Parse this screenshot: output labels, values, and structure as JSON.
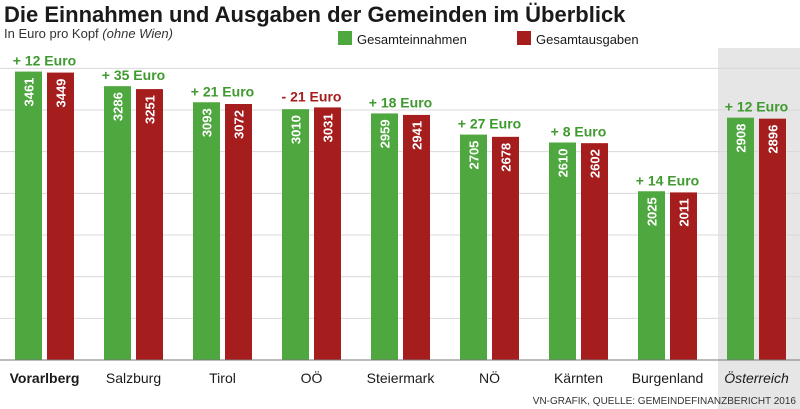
{
  "chart_data": {
    "type": "bar",
    "title": "Die Einnahmen und Ausgaben der Gemeinden im Überblick",
    "subtitle_prefix": "In Euro pro Kopf",
    "subtitle_note": "(ohne Wien)",
    "categories": [
      "Vorarlberg",
      "Salzburg",
      "Tirol",
      "OÖ",
      "Steiermark",
      "NÖ",
      "Kärnten",
      "Burgenland",
      "Österreich"
    ],
    "series": [
      {
        "name": "Gesamteinnahmen",
        "color": "#4ea83f",
        "values": [
          3461,
          3286,
          3093,
          3010,
          2959,
          2705,
          2610,
          2025,
          2908
        ]
      },
      {
        "name": "Gesamtausgaben",
        "color": "#a51d1d",
        "values": [
          3449,
          3251,
          3072,
          3031,
          2941,
          2678,
          2602,
          2011,
          2896
        ]
      }
    ],
    "differences": [
      "+ 12 Euro",
      "+ 35 Euro",
      "+ 21 Euro",
      "- 21 Euro",
      "+ 18 Euro",
      "+ 27 Euro",
      "+ 8 Euro",
      "+ 14 Euro",
      "+ 12 Euro"
    ],
    "difference_colors": {
      "positive": "#3f9a2f",
      "negative": "#a51d1d"
    },
    "ylim": [
      0,
      3600
    ],
    "grid": true,
    "legend_position": "top-right",
    "highlight_category": "Österreich",
    "bold_category": "Vorarlberg",
    "source": "VN-GRAFIK, QUELLE: GEMEINDEFINANZBERICHT 2016"
  }
}
